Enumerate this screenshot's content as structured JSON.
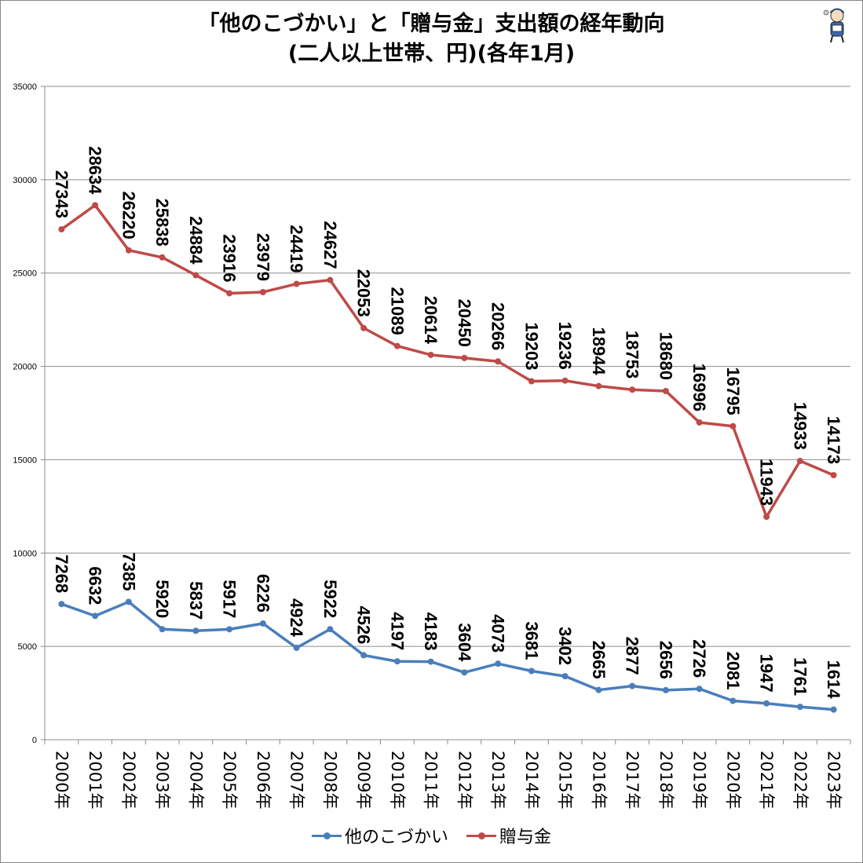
{
  "title": {
    "line1": "「他のこづかい」と「贈与金」支出額の経年動向",
    "line2": "(二人以上世帯、円)(各年1月)"
  },
  "chart_data": {
    "type": "line",
    "title": "「他のこづかい」と「贈与金」支出額の経年動向 (二人以上世帯、円)(各年1月)",
    "xlabel": "",
    "ylabel": "",
    "ylim": [
      0,
      35000
    ],
    "yticks": [
      0,
      5000,
      10000,
      15000,
      20000,
      25000,
      30000,
      35000
    ],
    "grid": true,
    "legend_position": "bottom",
    "categories": [
      "2000年",
      "2001年",
      "2002年",
      "2003年",
      "2004年",
      "2005年",
      "2006年",
      "2007年",
      "2008年",
      "2009年",
      "2010年",
      "2011年",
      "2012年",
      "2013年",
      "2014年",
      "2015年",
      "2016年",
      "2017年",
      "2018年",
      "2019年",
      "2020年",
      "2021年",
      "2022年",
      "2023年"
    ],
    "series": [
      {
        "name": "他のこづかい",
        "color": "#4a7ebb",
        "values": [
          7268,
          6632,
          7385,
          5920,
          5837,
          5917,
          6226,
          4924,
          5922,
          4526,
          4197,
          4183,
          3604,
          4073,
          3681,
          3402,
          2665,
          2877,
          2656,
          2726,
          2081,
          1947,
          1761,
          1614
        ]
      },
      {
        "name": "贈与金",
        "color": "#be4b48",
        "values": [
          27343,
          28634,
          26220,
          25838,
          24884,
          23916,
          23979,
          24419,
          24627,
          22053,
          21089,
          20614,
          20450,
          20266,
          19203,
          19236,
          18944,
          18753,
          18680,
          16996,
          16795,
          11943,
          14933,
          14173
        ]
      }
    ]
  },
  "mascot": {
    "icon": "mascot-icon"
  }
}
